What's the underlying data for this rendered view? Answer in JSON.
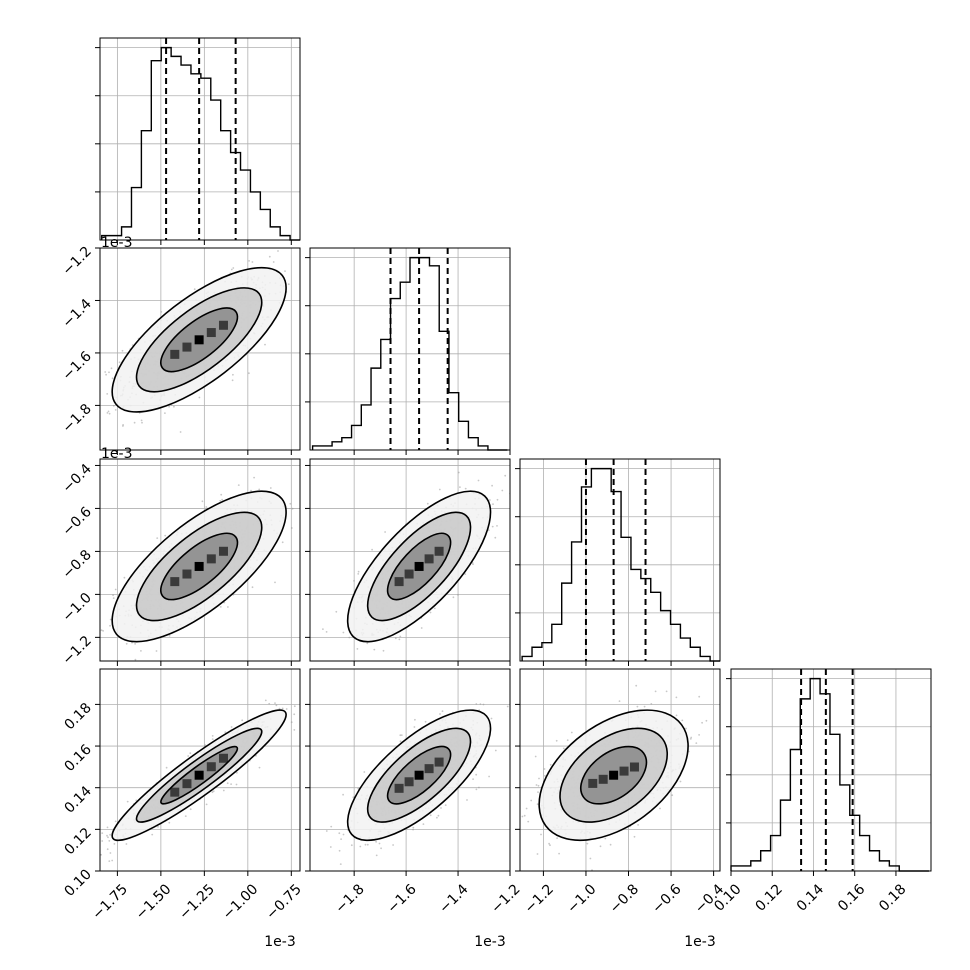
{
  "chart_data": {
    "type": "corner",
    "grid": true,
    "parameters": [
      {
        "index": 0,
        "offset_label": "1e-3",
        "axis_range": [
          -1.85,
          -0.7
        ],
        "ticks": [
          -1.75,
          -1.5,
          -1.25,
          -1.0,
          -0.75
        ],
        "tick_labels": [
          "−1.75",
          "−1.50",
          "−1.25",
          "−1.00",
          "−0.75"
        ],
        "quantiles": [
          -1.47,
          -1.28,
          -1.07
        ]
      },
      {
        "index": 1,
        "offset_label": "1e-3",
        "axis_range": [
          -1.97,
          -1.2
        ],
        "ticks": [
          -1.8,
          -1.6,
          -1.4,
          -1.2
        ],
        "tick_labels": [
          "−1.8",
          "−1.6",
          "−1.4",
          "−1.2"
        ],
        "quantiles": [
          -1.66,
          -1.55,
          -1.44
        ]
      },
      {
        "index": 2,
        "offset_label": "1e-3",
        "axis_range": [
          -1.31,
          -0.37
        ],
        "ticks": [
          -1.2,
          -1.0,
          -0.8,
          -0.6,
          -0.4
        ],
        "tick_labels": [
          "−1.2",
          "−1.0",
          "−0.8",
          "−0.6",
          "−0.4"
        ],
        "quantiles": [
          -1.0,
          -0.87,
          -0.72
        ]
      },
      {
        "index": 3,
        "offset_label": "",
        "axis_range": [
          0.1,
          0.197
        ],
        "ticks": [
          0.1,
          0.12,
          0.14,
          0.16,
          0.18
        ],
        "tick_labels": [
          "0.10",
          "0.12",
          "0.14",
          "0.16",
          "0.18"
        ],
        "quantiles": [
          0.134,
          0.146,
          0.159
        ]
      }
    ],
    "histograms": [
      {
        "param": 0,
        "bin_start": -1.84,
        "bin_width": 0.057,
        "counts": [
          1,
          1,
          3,
          12,
          25,
          41,
          44,
          42,
          40,
          38,
          37,
          32,
          25,
          20,
          16,
          11,
          7,
          3,
          1,
          0
        ]
      },
      {
        "param": 1,
        "bin_start": -1.96,
        "bin_width": 0.0375,
        "counts": [
          1,
          1,
          2,
          3,
          6,
          11,
          20,
          27,
          37,
          41,
          47,
          47,
          45,
          29,
          14,
          7,
          3,
          1,
          0,
          0
        ]
      },
      {
        "param": 2,
        "bin_start": -1.3,
        "bin_width": 0.0465,
        "counts": [
          1,
          3,
          4,
          8,
          17,
          26,
          38,
          42,
          42,
          37,
          27,
          20,
          18,
          15,
          11,
          8,
          5,
          3,
          1,
          0
        ]
      },
      {
        "param": 3,
        "bin_start": 0.1,
        "bin_width": 0.0048,
        "counts": [
          1,
          1,
          2,
          4,
          7,
          14,
          24,
          34,
          38,
          35,
          27,
          17,
          11,
          7,
          4,
          2,
          1,
          0,
          0,
          0
        ]
      }
    ]
  }
}
